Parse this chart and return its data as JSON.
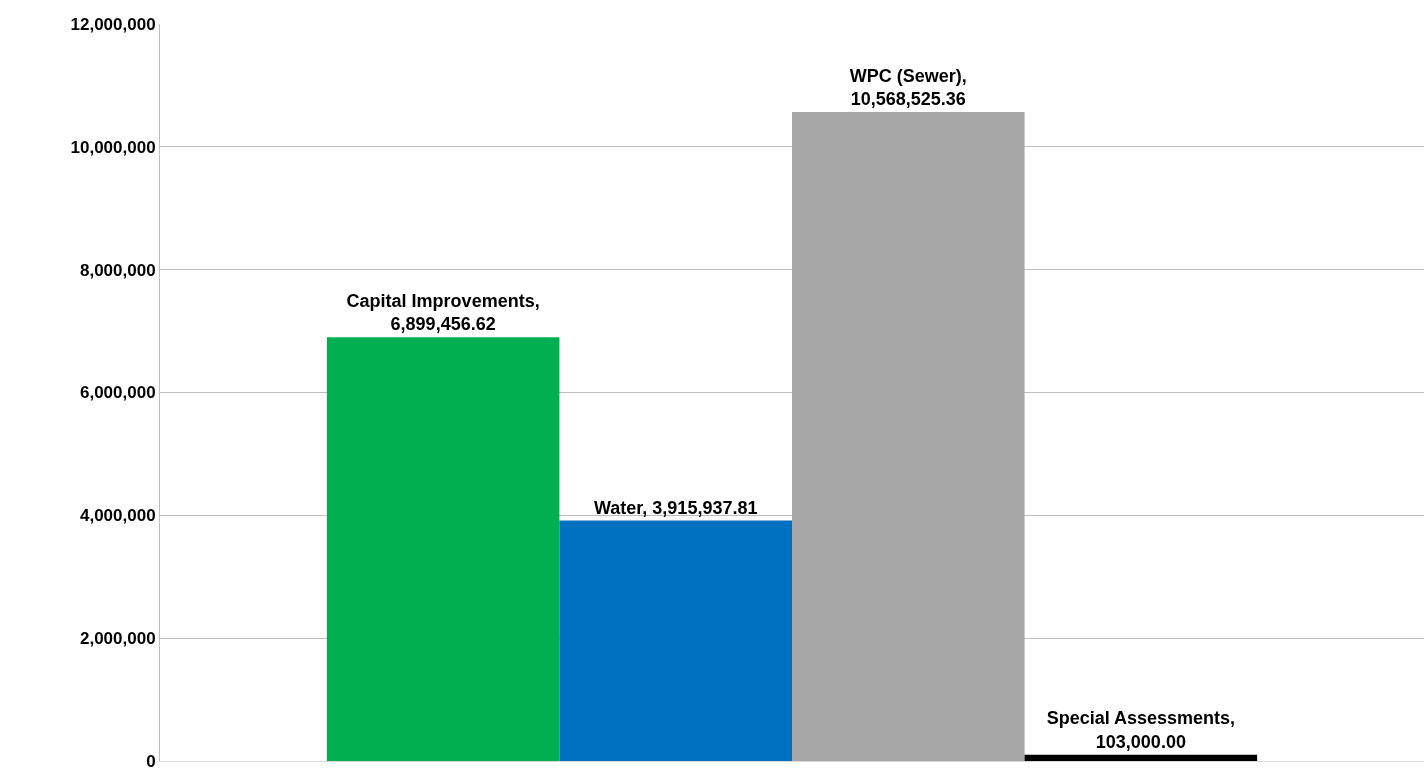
{
  "chart_data": {
    "type": "bar",
    "categories": [
      null
    ],
    "series": [
      {
        "color": "#00b050",
        "values": [
          6899456.62
        ],
        "value_labels": [
          "Capital Improvements, 6,899,456.62"
        ]
      },
      {
        "color": "#0070c0",
        "values": [
          3915937.81
        ],
        "value_labels": [
          "Water, 3,915,937.81"
        ]
      },
      {
        "color": "#a6a6a6",
        "values": [
          10568525.36
        ],
        "value_labels": [
          "WPC (Sewer), 10,568,525.36"
        ]
      },
      {
        "color": "#000000",
        "values": [
          103000
        ],
        "value_labels": [
          "Special Assessments, 103,000.00"
        ]
      }
    ],
    "ylim": [
      0,
      12000000
    ],
    "yticks": [
      {
        "value": 0,
        "label": "0"
      },
      {
        "value": 2000000,
        "label": "2,000,000"
      },
      {
        "value": 4000000,
        "label": "4,000,000"
      },
      {
        "value": 6000000,
        "label": "6,000,000"
      },
      {
        "value": 8000000,
        "label": "8,000,000"
      },
      {
        "value": 10000000,
        "label": "10,000,000"
      },
      {
        "value": 12000000,
        "label": "12,000,000"
      }
    ],
    "grid": "y",
    "tick_labels": "y"
  }
}
